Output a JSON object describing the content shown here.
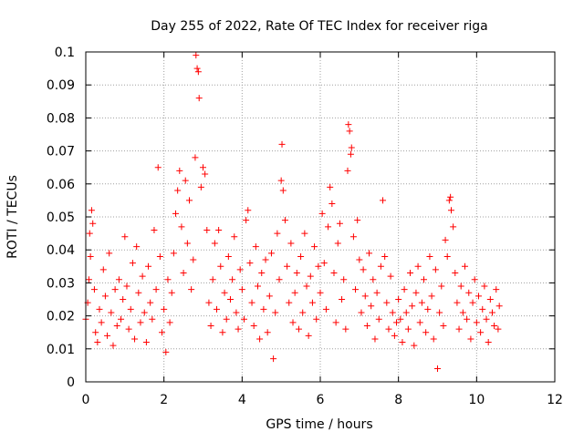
{
  "chart_data": {
    "type": "scatter",
    "title": "Day 255 of 2022, Rate Of TEC Index for receiver riga",
    "xlabel": "GPS time / hours",
    "ylabel": "ROTI / TECUs",
    "xlim": [
      0,
      12
    ],
    "ylim": [
      0,
      0.1
    ],
    "x_ticks": [
      0,
      2,
      4,
      6,
      8,
      10,
      12
    ],
    "y_ticks": [
      0,
      0.01,
      0.02,
      0.03,
      0.04,
      0.05,
      0.06,
      0.07,
      0.08,
      0.09,
      0.1
    ],
    "x_tick_labels": [
      "0",
      "2",
      "4",
      "6",
      "8",
      "10",
      "12"
    ],
    "y_tick_labels": [
      "0",
      "0.01",
      "0.02",
      "0.03",
      "0.04",
      "0.05",
      "0.06",
      "0.07",
      "0.08",
      "0.09",
      "0.1"
    ],
    "grid": true,
    "marker": "+",
    "colors": {
      "points": "#ff0000",
      "grid": "#a0a0a0",
      "axes": "#000000"
    },
    "series": [
      {
        "points": [
          [
            0.0,
            0.019
          ],
          [
            0.05,
            0.024
          ],
          [
            0.08,
            0.031
          ],
          [
            0.1,
            0.045
          ],
          [
            0.12,
            0.038
          ],
          [
            0.15,
            0.052
          ],
          [
            0.18,
            0.048
          ],
          [
            0.22,
            0.028
          ],
          [
            0.25,
            0.015
          ],
          [
            0.3,
            0.012
          ],
          [
            0.35,
            0.022
          ],
          [
            0.4,
            0.018
          ],
          [
            0.45,
            0.034
          ],
          [
            0.5,
            0.026
          ],
          [
            0.55,
            0.014
          ],
          [
            0.6,
            0.039
          ],
          [
            0.65,
            0.021
          ],
          [
            0.7,
            0.011
          ],
          [
            0.75,
            0.028
          ],
          [
            0.8,
            0.017
          ],
          [
            0.85,
            0.031
          ],
          [
            0.9,
            0.019
          ],
          [
            0.95,
            0.025
          ],
          [
            1.0,
            0.044
          ],
          [
            1.05,
            0.029
          ],
          [
            1.1,
            0.016
          ],
          [
            1.15,
            0.022
          ],
          [
            1.2,
            0.036
          ],
          [
            1.25,
            0.013
          ],
          [
            1.3,
            0.041
          ],
          [
            1.35,
            0.027
          ],
          [
            1.4,
            0.018
          ],
          [
            1.45,
            0.032
          ],
          [
            1.5,
            0.021
          ],
          [
            1.55,
            0.012
          ],
          [
            1.6,
            0.035
          ],
          [
            1.65,
            0.024
          ],
          [
            1.7,
            0.019
          ],
          [
            1.75,
            0.046
          ],
          [
            1.8,
            0.028
          ],
          [
            1.85,
            0.065
          ],
          [
            1.9,
            0.038
          ],
          [
            1.95,
            0.015
          ],
          [
            2.0,
            0.022
          ],
          [
            2.05,
            0.009
          ],
          [
            2.1,
            0.031
          ],
          [
            2.15,
            0.018
          ],
          [
            2.2,
            0.027
          ],
          [
            2.25,
            0.039
          ],
          [
            2.3,
            0.051
          ],
          [
            2.35,
            0.058
          ],
          [
            2.4,
            0.064
          ],
          [
            2.45,
            0.047
          ],
          [
            2.5,
            0.033
          ],
          [
            2.55,
            0.061
          ],
          [
            2.6,
            0.042
          ],
          [
            2.65,
            0.055
          ],
          [
            2.7,
            0.028
          ],
          [
            2.75,
            0.037
          ],
          [
            2.8,
            0.068
          ],
          [
            2.82,
            0.099
          ],
          [
            2.85,
            0.095
          ],
          [
            2.88,
            0.094
          ],
          [
            2.9,
            0.086
          ],
          [
            2.95,
            0.059
          ],
          [
            3.0,
            0.065
          ],
          [
            3.05,
            0.063
          ],
          [
            3.1,
            0.046
          ],
          [
            3.15,
            0.024
          ],
          [
            3.2,
            0.017
          ],
          [
            3.25,
            0.031
          ],
          [
            3.3,
            0.042
          ],
          [
            3.35,
            0.022
          ],
          [
            3.4,
            0.046
          ],
          [
            3.45,
            0.035
          ],
          [
            3.5,
            0.015
          ],
          [
            3.55,
            0.027
          ],
          [
            3.6,
            0.019
          ],
          [
            3.65,
            0.038
          ],
          [
            3.7,
            0.025
          ],
          [
            3.75,
            0.031
          ],
          [
            3.8,
            0.044
          ],
          [
            3.85,
            0.021
          ],
          [
            3.9,
            0.016
          ],
          [
            3.95,
            0.034
          ],
          [
            4.0,
            0.028
          ],
          [
            4.05,
            0.019
          ],
          [
            4.1,
            0.049
          ],
          [
            4.15,
            0.052
          ],
          [
            4.2,
            0.036
          ],
          [
            4.25,
            0.024
          ],
          [
            4.3,
            0.017
          ],
          [
            4.35,
            0.041
          ],
          [
            4.4,
            0.029
          ],
          [
            4.45,
            0.013
          ],
          [
            4.5,
            0.033
          ],
          [
            4.55,
            0.022
          ],
          [
            4.6,
            0.037
          ],
          [
            4.65,
            0.015
          ],
          [
            4.7,
            0.026
          ],
          [
            4.75,
            0.039
          ],
          [
            4.8,
            0.007
          ],
          [
            4.85,
            0.021
          ],
          [
            4.9,
            0.045
          ],
          [
            4.95,
            0.031
          ],
          [
            5.0,
            0.061
          ],
          [
            5.02,
            0.072
          ],
          [
            5.05,
            0.058
          ],
          [
            5.1,
            0.049
          ],
          [
            5.15,
            0.035
          ],
          [
            5.2,
            0.024
          ],
          [
            5.25,
            0.042
          ],
          [
            5.3,
            0.018
          ],
          [
            5.35,
            0.027
          ],
          [
            5.4,
            0.033
          ],
          [
            5.45,
            0.016
          ],
          [
            5.5,
            0.038
          ],
          [
            5.55,
            0.021
          ],
          [
            5.6,
            0.045
          ],
          [
            5.65,
            0.029
          ],
          [
            5.7,
            0.014
          ],
          [
            5.75,
            0.032
          ],
          [
            5.8,
            0.024
          ],
          [
            5.85,
            0.041
          ],
          [
            5.9,
            0.019
          ],
          [
            5.95,
            0.035
          ],
          [
            6.0,
            0.027
          ],
          [
            6.05,
            0.051
          ],
          [
            6.1,
            0.036
          ],
          [
            6.15,
            0.022
          ],
          [
            6.2,
            0.047
          ],
          [
            6.25,
            0.059
          ],
          [
            6.3,
            0.054
          ],
          [
            6.35,
            0.033
          ],
          [
            6.4,
            0.018
          ],
          [
            6.45,
            0.042
          ],
          [
            6.5,
            0.048
          ],
          [
            6.55,
            0.025
          ],
          [
            6.6,
            0.031
          ],
          [
            6.65,
            0.016
          ],
          [
            6.7,
            0.064
          ],
          [
            6.72,
            0.078
          ],
          [
            6.75,
            0.076
          ],
          [
            6.78,
            0.069
          ],
          [
            6.8,
            0.071
          ],
          [
            6.85,
            0.044
          ],
          [
            6.9,
            0.028
          ],
          [
            6.95,
            0.049
          ],
          [
            7.0,
            0.037
          ],
          [
            7.05,
            0.021
          ],
          [
            7.1,
            0.034
          ],
          [
            7.15,
            0.026
          ],
          [
            7.2,
            0.017
          ],
          [
            7.25,
            0.039
          ],
          [
            7.3,
            0.023
          ],
          [
            7.35,
            0.031
          ],
          [
            7.4,
            0.013
          ],
          [
            7.45,
            0.027
          ],
          [
            7.5,
            0.019
          ],
          [
            7.55,
            0.035
          ],
          [
            7.6,
            0.055
          ],
          [
            7.65,
            0.038
          ],
          [
            7.7,
            0.024
          ],
          [
            7.75,
            0.016
          ],
          [
            7.8,
            0.032
          ],
          [
            7.85,
            0.021
          ],
          [
            7.9,
            0.014
          ],
          [
            7.95,
            0.018
          ],
          [
            8.0,
            0.025
          ],
          [
            8.05,
            0.019
          ],
          [
            8.1,
            0.012
          ],
          [
            8.15,
            0.028
          ],
          [
            8.2,
            0.021
          ],
          [
            8.25,
            0.016
          ],
          [
            8.3,
            0.033
          ],
          [
            8.35,
            0.023
          ],
          [
            8.4,
            0.011
          ],
          [
            8.45,
            0.027
          ],
          [
            8.5,
            0.035
          ],
          [
            8.55,
            0.018
          ],
          [
            8.6,
            0.024
          ],
          [
            8.65,
            0.031
          ],
          [
            8.7,
            0.015
          ],
          [
            8.75,
            0.022
          ],
          [
            8.8,
            0.038
          ],
          [
            8.85,
            0.026
          ],
          [
            8.9,
            0.013
          ],
          [
            8.95,
            0.034
          ],
          [
            9.0,
            0.004
          ],
          [
            9.05,
            0.021
          ],
          [
            9.1,
            0.029
          ],
          [
            9.15,
            0.017
          ],
          [
            9.2,
            0.043
          ],
          [
            9.25,
            0.038
          ],
          [
            9.3,
            0.055
          ],
          [
            9.33,
            0.056
          ],
          [
            9.35,
            0.052
          ],
          [
            9.4,
            0.047
          ],
          [
            9.45,
            0.033
          ],
          [
            9.5,
            0.024
          ],
          [
            9.55,
            0.016
          ],
          [
            9.6,
            0.029
          ],
          [
            9.65,
            0.021
          ],
          [
            9.7,
            0.035
          ],
          [
            9.75,
            0.019
          ],
          [
            9.8,
            0.027
          ],
          [
            9.85,
            0.013
          ],
          [
            9.9,
            0.024
          ],
          [
            9.95,
            0.031
          ],
          [
            10.0,
            0.018
          ],
          [
            10.05,
            0.026
          ],
          [
            10.1,
            0.015
          ],
          [
            10.15,
            0.022
          ],
          [
            10.2,
            0.029
          ],
          [
            10.25,
            0.019
          ],
          [
            10.3,
            0.012
          ],
          [
            10.35,
            0.025
          ],
          [
            10.4,
            0.021
          ],
          [
            10.45,
            0.017
          ],
          [
            10.5,
            0.028
          ],
          [
            10.55,
            0.016
          ],
          [
            10.58,
            0.023
          ]
        ]
      }
    ]
  }
}
